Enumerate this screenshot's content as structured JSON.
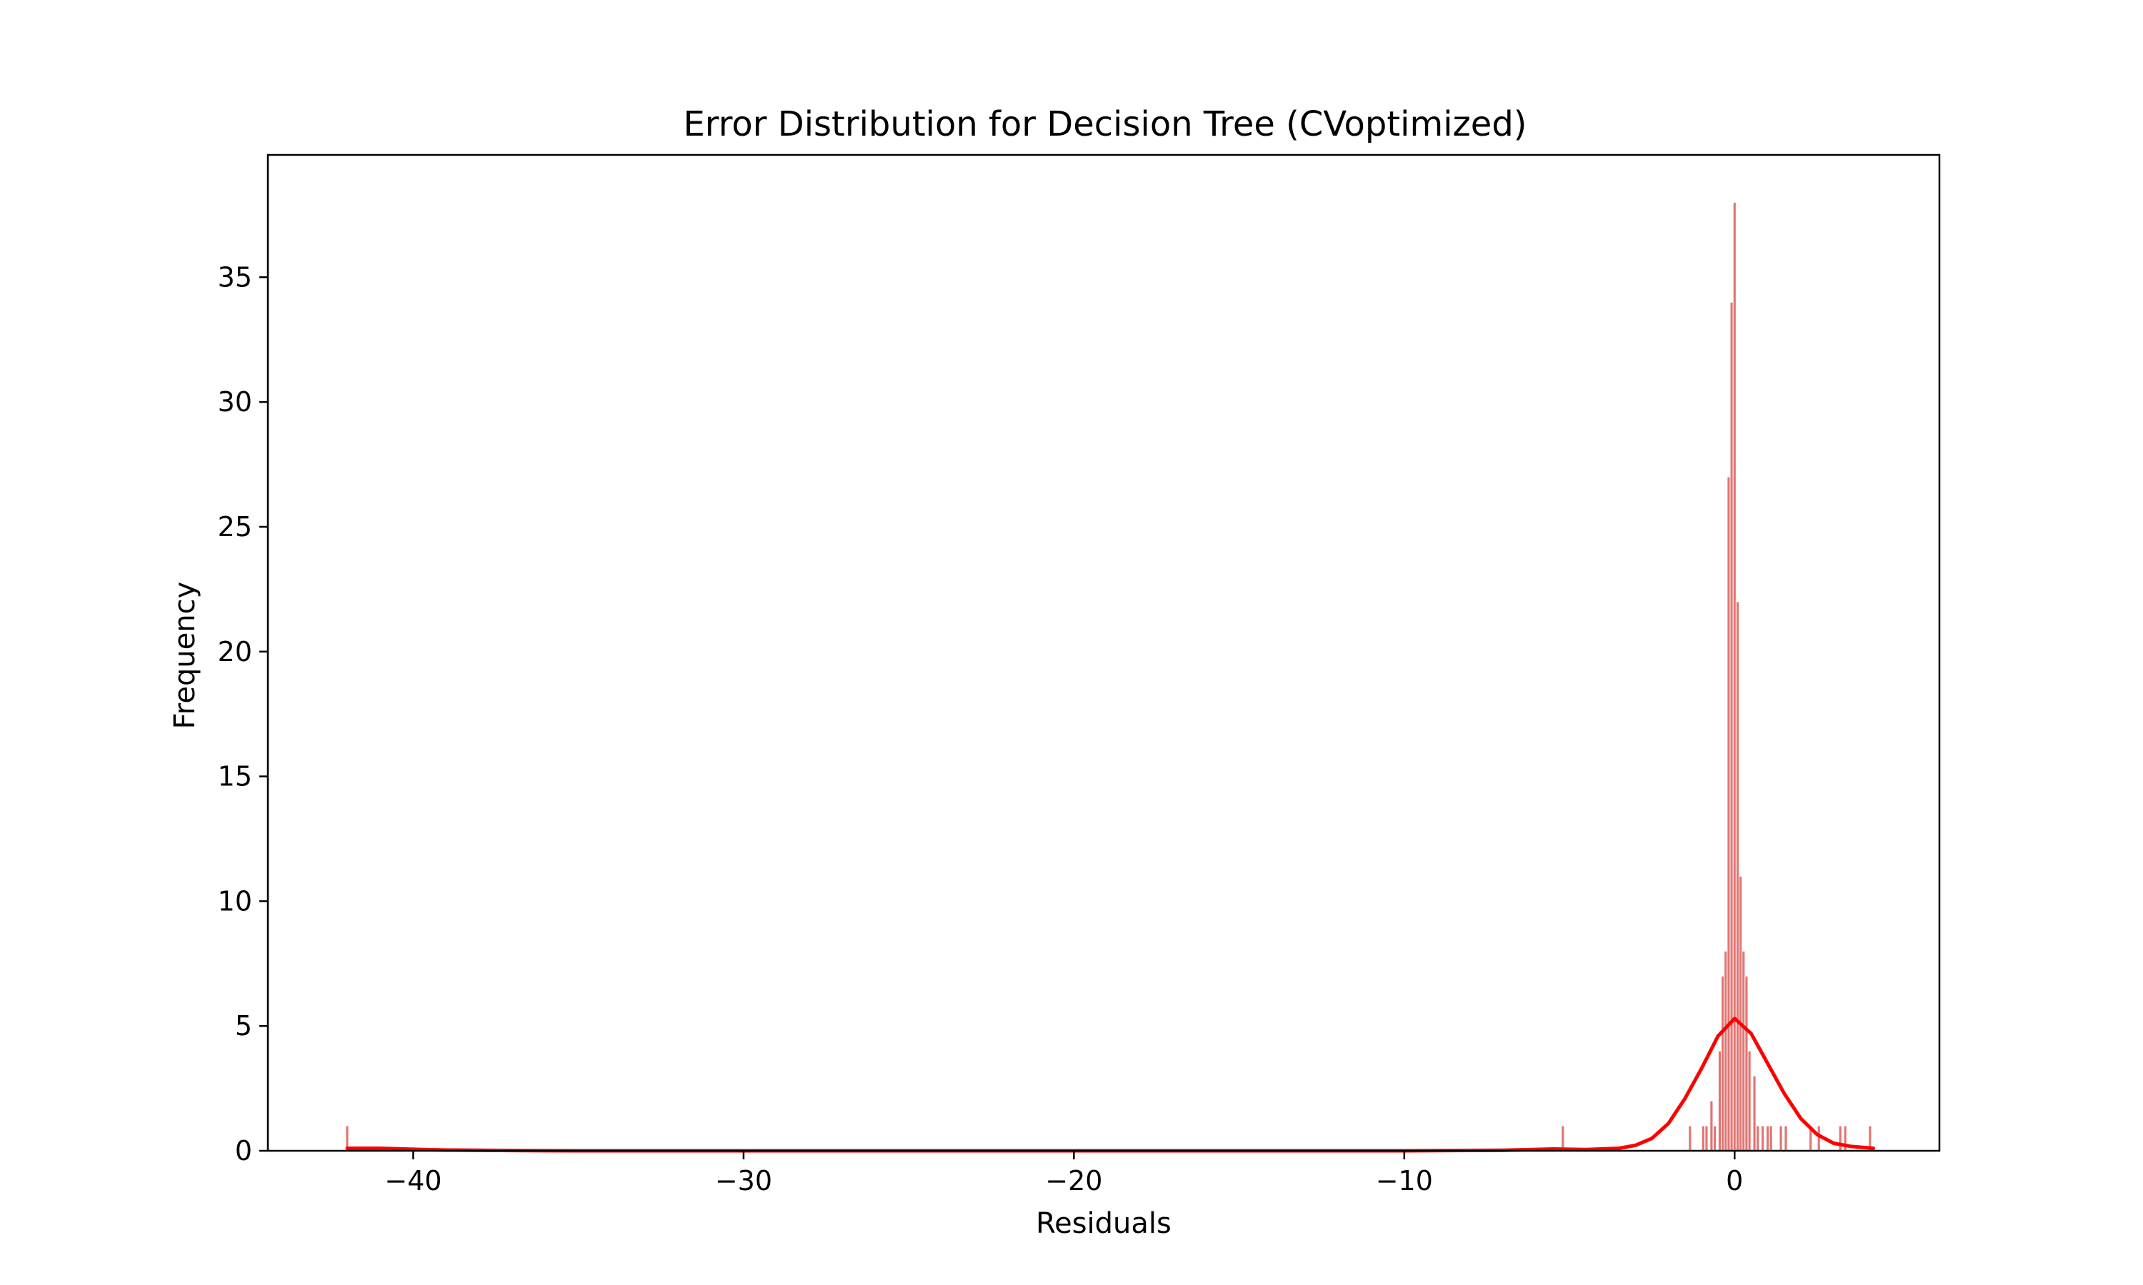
{
  "chart_data": {
    "type": "bar",
    "title": "Error Distribution for Decision Tree (CVoptimized)",
    "xlabel": "Residuals",
    "ylabel": "Frequency",
    "xlim": [
      -44.4,
      6.2
    ],
    "ylim": [
      0,
      39.9
    ],
    "xticks": [
      {
        "value": -40,
        "label": "−40"
      },
      {
        "value": -30,
        "label": "−30"
      },
      {
        "value": -20,
        "label": "−20"
      },
      {
        "value": -10,
        "label": "−10"
      },
      {
        "value": 0,
        "label": "0"
      }
    ],
    "yticks": [
      {
        "value": 0,
        "label": "0"
      },
      {
        "value": 5,
        "label": "5"
      },
      {
        "value": 10,
        "label": "10"
      },
      {
        "value": 15,
        "label": "15"
      },
      {
        "value": 20,
        "label": "20"
      },
      {
        "value": 25,
        "label": "25"
      },
      {
        "value": 30,
        "label": "30"
      },
      {
        "value": 35,
        "label": "35"
      }
    ],
    "grid": false,
    "bar_color": "#d9534f",
    "kde_color": "#ff0000",
    "bin_width": 0.09,
    "bars": [
      {
        "x": -42.0,
        "y": 1
      },
      {
        "x": -5.2,
        "y": 1
      },
      {
        "x": -1.35,
        "y": 1
      },
      {
        "x": -0.95,
        "y": 1
      },
      {
        "x": -0.85,
        "y": 1
      },
      {
        "x": -0.7,
        "y": 2
      },
      {
        "x": -0.6,
        "y": 1
      },
      {
        "x": -0.45,
        "y": 4
      },
      {
        "x": -0.36,
        "y": 7
      },
      {
        "x": -0.27,
        "y": 8
      },
      {
        "x": -0.18,
        "y": 27
      },
      {
        "x": -0.09,
        "y": 34
      },
      {
        "x": 0.0,
        "y": 38
      },
      {
        "x": 0.09,
        "y": 22
      },
      {
        "x": 0.18,
        "y": 11
      },
      {
        "x": 0.27,
        "y": 8
      },
      {
        "x": 0.36,
        "y": 7
      },
      {
        "x": 0.45,
        "y": 4
      },
      {
        "x": 0.6,
        "y": 3
      },
      {
        "x": 0.7,
        "y": 1
      },
      {
        "x": 0.85,
        "y": 1
      },
      {
        "x": 1.0,
        "y": 1
      },
      {
        "x": 1.1,
        "y": 1
      },
      {
        "x": 1.4,
        "y": 1
      },
      {
        "x": 1.55,
        "y": 1
      },
      {
        "x": 2.3,
        "y": 1
      },
      {
        "x": 2.55,
        "y": 1
      },
      {
        "x": 3.2,
        "y": 1
      },
      {
        "x": 3.35,
        "y": 1
      },
      {
        "x": 4.1,
        "y": 1
      }
    ],
    "kde": [
      [
        -42.0,
        0.1
      ],
      [
        -41.0,
        0.1
      ],
      [
        -40.0,
        0.06
      ],
      [
        -39.0,
        0.03
      ],
      [
        -37.0,
        0.01
      ],
      [
        -35.0,
        0.0
      ],
      [
        -10.0,
        0.0
      ],
      [
        -7.0,
        0.02
      ],
      [
        -5.5,
        0.07
      ],
      [
        -4.5,
        0.05
      ],
      [
        -3.5,
        0.1
      ],
      [
        -3.0,
        0.22
      ],
      [
        -2.5,
        0.5
      ],
      [
        -2.0,
        1.1
      ],
      [
        -1.5,
        2.1
      ],
      [
        -1.0,
        3.3
      ],
      [
        -0.5,
        4.6
      ],
      [
        0.0,
        5.3
      ],
      [
        0.5,
        4.7
      ],
      [
        1.0,
        3.5
      ],
      [
        1.5,
        2.3
      ],
      [
        2.0,
        1.3
      ],
      [
        2.5,
        0.65
      ],
      [
        3.0,
        0.3
      ],
      [
        3.5,
        0.18
      ],
      [
        4.2,
        0.1
      ]
    ]
  }
}
